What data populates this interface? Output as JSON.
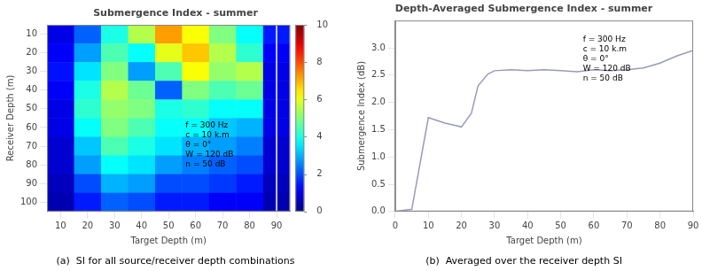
{
  "chart_data": [
    {
      "type": "heatmap",
      "title": "Submergence Index - summer",
      "xlabel": "Target Depth (m)",
      "ylabel": "Receiver Depth (m)",
      "x": [
        10,
        20,
        30,
        40,
        50,
        60,
        70,
        80,
        90
      ],
      "y": [
        10,
        20,
        30,
        40,
        50,
        60,
        70,
        80,
        90,
        100
      ],
      "values": [
        [
          1.0,
          2.2,
          4.0,
          5.5,
          7.2,
          6.2,
          5.0,
          3.8,
          1.5
        ],
        [
          1.2,
          2.8,
          4.5,
          3.8,
          6.0,
          6.8,
          5.5,
          4.2,
          1.2
        ],
        [
          1.4,
          3.5,
          5.0,
          2.8,
          4.5,
          6.2,
          5.2,
          5.5,
          1.0
        ],
        [
          1.2,
          4.0,
          5.5,
          4.8,
          2.2,
          5.0,
          4.5,
          4.8,
          1.0
        ],
        [
          1.0,
          4.2,
          5.2,
          5.0,
          4.0,
          4.2,
          3.8,
          3.8,
          1.0
        ],
        [
          1.0,
          3.8,
          5.0,
          4.5,
          3.8,
          3.8,
          3.2,
          3.0,
          1.0
        ],
        [
          0.8,
          3.2,
          4.5,
          4.0,
          3.5,
          3.0,
          2.8,
          2.5,
          0.8
        ],
        [
          0.8,
          2.8,
          3.8,
          3.5,
          2.8,
          2.5,
          2.2,
          2.0,
          0.8
        ],
        [
          0.6,
          2.0,
          3.0,
          2.8,
          2.0,
          2.0,
          1.8,
          1.5,
          0.6
        ],
        [
          0.5,
          1.5,
          2.2,
          2.0,
          1.5,
          1.5,
          1.2,
          1.2,
          0.5
        ]
      ],
      "xlim": [
        5,
        95
      ],
      "ylim": [
        105,
        5
      ],
      "xticks": [
        10,
        20,
        30,
        40,
        50,
        60,
        70,
        80,
        90
      ],
      "yticks": [
        10,
        20,
        30,
        40,
        50,
        60,
        70,
        80,
        90,
        100
      ],
      "colorbar_range": [
        0,
        10
      ],
      "colorbar_ticks": [
        0,
        2,
        4,
        6,
        8,
        10
      ],
      "annotation": "f = 300 Hz\nc = 10 k.m\nθ = 0°\nW = 120 dB\nn = 50 dB",
      "vlines": [
        {
          "x": 90,
          "color": "white"
        }
      ],
      "caption": "(a)  SI for all source/receiver depth combinations",
      "grid": false
    },
    {
      "type": "line",
      "title": "Depth-Averaged Submergence Index - summer",
      "xlabel": "Target Depth (m)",
      "ylabel": "Submergence Index (dB)",
      "x": [
        0,
        5,
        10,
        12,
        15,
        18,
        20,
        23,
        25,
        28,
        30,
        35,
        40,
        45,
        50,
        55,
        60,
        65,
        70,
        75,
        80,
        85,
        90
      ],
      "values": [
        0.0,
        0.04,
        1.72,
        1.68,
        1.62,
        1.58,
        1.55,
        1.8,
        2.3,
        2.52,
        2.58,
        2.6,
        2.58,
        2.6,
        2.58,
        2.56,
        2.6,
        2.58,
        2.6,
        2.63,
        2.72,
        2.85,
        2.95
      ],
      "color": "#9999bb",
      "xlim": [
        0,
        90
      ],
      "ylim": [
        0,
        3.5
      ],
      "xticks": [
        0,
        10,
        20,
        30,
        40,
        50,
        60,
        70,
        80,
        90
      ],
      "yticks": [
        {
          "value": 0.0,
          "label": "0.0"
        },
        0.5,
        {
          "value": 1.0,
          "label": "1.0"
        },
        1.5,
        {
          "value": 2.0,
          "label": "2.0"
        },
        2.5,
        {
          "value": 3.0,
          "label": "3.0"
        }
      ],
      "annotation": "f = 300 Hz\nc = 10 k.m\nθ = 0°\nW = 120 dB\nn = 50 dB",
      "caption": "(b)  Averaged over the receiver depth SI",
      "grid": false
    }
  ]
}
